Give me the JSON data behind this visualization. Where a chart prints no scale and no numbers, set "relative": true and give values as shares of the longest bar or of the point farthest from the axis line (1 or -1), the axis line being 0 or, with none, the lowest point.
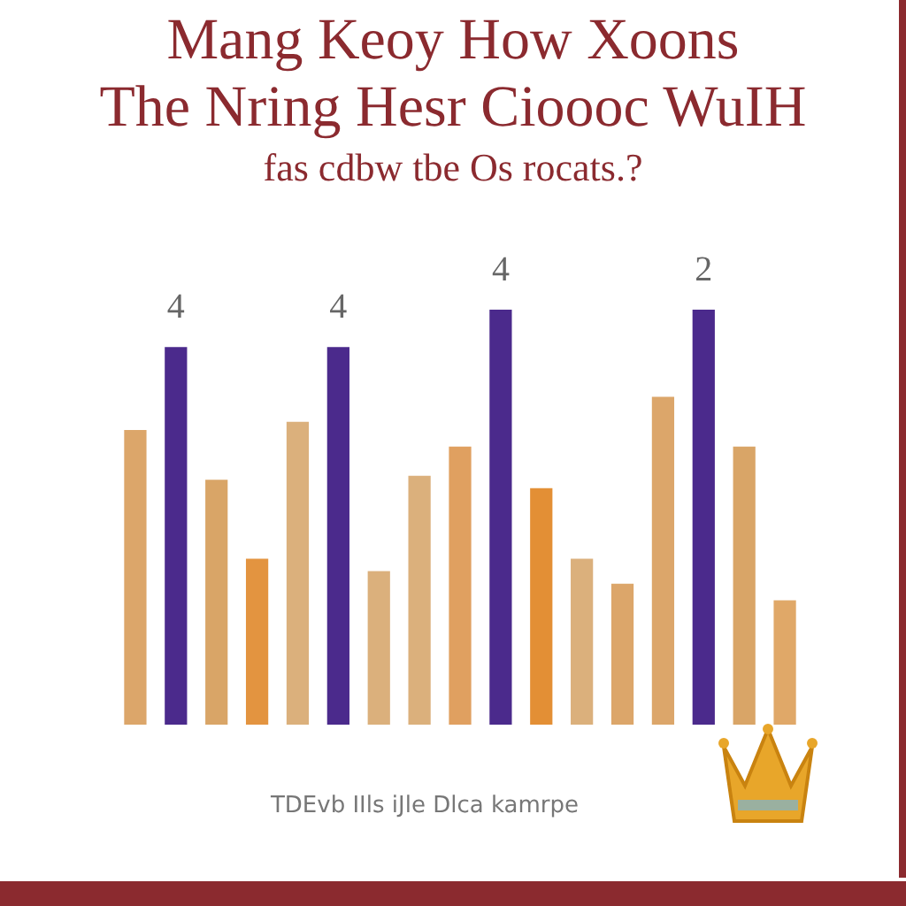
{
  "chart_data": {
    "type": "bar",
    "title": "Mang Keoy How Xoons\nThe Nring Hesr Cioooc WuIH",
    "subtitle": "fas cdbw tbe Os rocats.?",
    "relative": true,
    "categories": [
      null,
      null,
      null,
      null,
      null,
      null,
      null,
      null,
      null,
      null,
      null,
      null,
      null,
      null,
      null,
      null,
      null
    ],
    "values": [
      0.71,
      0.91,
      0.59,
      0.4,
      0.73,
      0.91,
      0.37,
      0.6,
      0.67,
      1.0,
      0.57,
      0.4,
      0.34,
      0.79,
      1.0,
      0.67,
      0.3
    ],
    "colors": [
      "#dca66a",
      "#4b2a8c",
      "#d9a567",
      "#e39440",
      "#dbb07c",
      "#4b2a8c",
      "#dbb07c",
      "#dbb07c",
      "#e0a060",
      "#4b2a8c",
      "#e38f35",
      "#dbb07c",
      "#dca66a",
      "#dca66a",
      "#4b2a8c",
      "#d9a567",
      "#e0a868"
    ],
    "annotations": [
      "4",
      "4",
      "4",
      "2",
      "TDEvb IIls iJle Dlca kamrpe"
    ],
    "grid": false,
    "legend": false
  }
}
